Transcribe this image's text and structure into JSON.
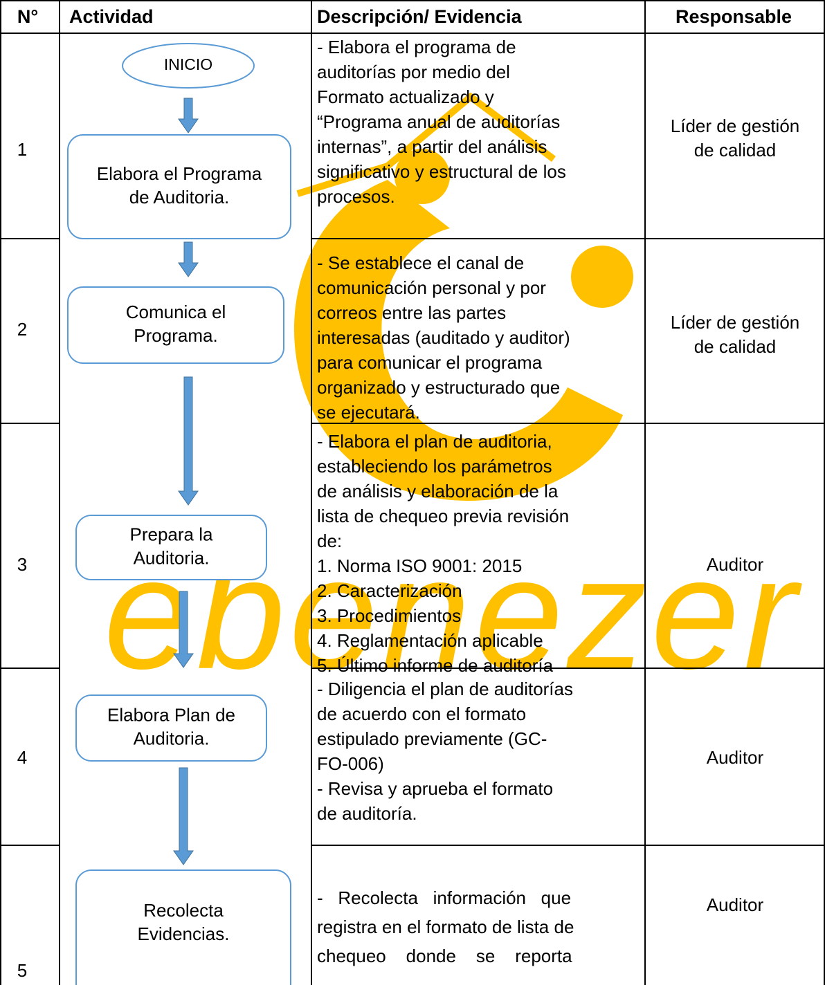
{
  "header": [
    "N°",
    "Actividad",
    "Descripción/ Evidencia",
    "Responsable"
  ],
  "start": "INICIO",
  "watermark": "ebenezer",
  "rows": [
    {
      "number": "1",
      "activity": [
        "Elabora el Programa",
        "de Auditoria."
      ],
      "description": [
        "- Elabora el programa de",
        "auditorías por medio del",
        "Formato actualizado y",
        "“Programa anual de auditorías",
        "internas”, a partir del análisis",
        "significativo y estructural de los",
        "procesos."
      ],
      "responsible": [
        "Líder de gestión",
        "de calidad"
      ]
    },
    {
      "number": "2",
      "activity": [
        "Comunica el",
        "Programa."
      ],
      "description": [
        "- Se establece el canal de",
        "comunicación personal y por",
        "correos entre las partes",
        "interesadas (auditado y auditor)",
        "para comunicar el programa",
        "organizado y estructurado que",
        "se ejecutará."
      ],
      "responsible": [
        "Líder de gestión",
        "de calidad"
      ]
    },
    {
      "number": "3",
      "activity": [
        "Prepara la",
        "Auditoria."
      ],
      "description": [
        "- Elabora el plan de auditoria,",
        "estableciendo los parámetros",
        "de análisis y elaboración de la",
        "lista de chequeo previa revisión",
        "de:",
        "1. Norma ISO 9001: 2015",
        "2. Caracterización",
        "3. Procedimientos",
        "4. Reglamentación aplicable",
        "5. Último informe de auditoría"
      ],
      "responsible": [
        "Auditor"
      ]
    },
    {
      "number": "4",
      "activity": [
        "Elabora Plan de",
        "Auditoria."
      ],
      "description": [
        "- Diligencia el plan de auditorías",
        "de acuerdo con el formato",
        "estipulado previamente (GC-",
        "FO-006)",
        "- Revisa y aprueba el formato",
        "de auditoría."
      ],
      "responsible": [
        "Auditor"
      ]
    },
    {
      "number": "5",
      "activity": [
        "Recolecta",
        "Evidencias."
      ],
      "description": [
        "-   Recolecta   información   que",
        "registra en el formato de lista de",
        "chequeo    donde    se    reporta"
      ],
      "responsible": [
        "Auditor"
      ]
    }
  ]
}
